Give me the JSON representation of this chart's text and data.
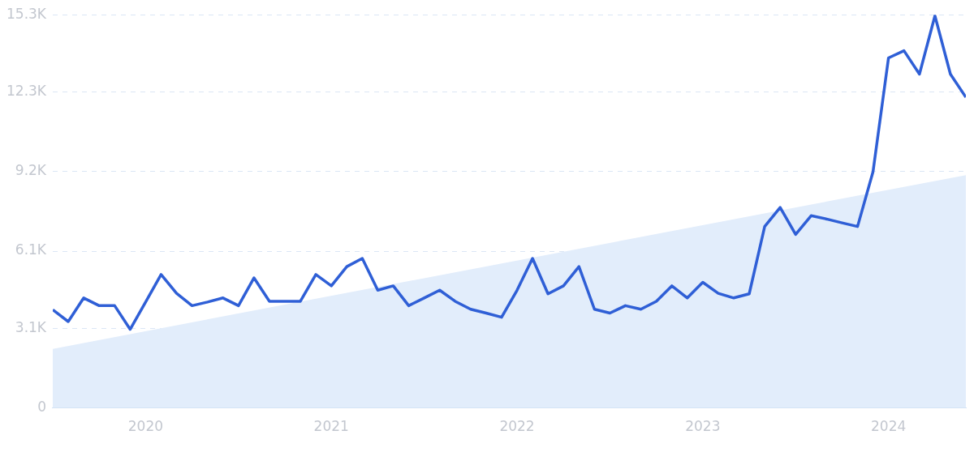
{
  "chart_data": {
    "type": "line",
    "x": [
      "2019-07",
      "2019-08",
      "2019-09",
      "2019-10",
      "2019-11",
      "2019-12",
      "2020-01",
      "2020-02",
      "2020-03",
      "2020-04",
      "2020-05",
      "2020-06",
      "2020-07",
      "2020-08",
      "2020-09",
      "2020-10",
      "2020-11",
      "2020-12",
      "2021-01",
      "2021-02",
      "2021-03",
      "2021-04",
      "2021-05",
      "2021-06",
      "2021-07",
      "2021-08",
      "2021-09",
      "2021-10",
      "2021-11",
      "2021-12",
      "2022-01",
      "2022-02",
      "2022-03",
      "2022-04",
      "2022-05",
      "2022-06",
      "2022-07",
      "2022-08",
      "2022-09",
      "2022-10",
      "2022-11",
      "2022-12",
      "2023-01",
      "2023-02",
      "2023-03",
      "2023-04",
      "2023-05",
      "2023-06",
      "2023-07",
      "2023-08",
      "2023-09",
      "2023-10",
      "2023-11",
      "2023-12",
      "2024-01",
      "2024-02",
      "2024-03",
      "2024-04",
      "2024-05",
      "2024-06"
    ],
    "series": [
      {
        "type": "area",
        "color": "#e2edfb",
        "x": [
          "2019-07",
          "2024-06"
        ],
        "values": [
          2300,
          9060
        ]
      },
      {
        "type": "line",
        "color": "#2f5fd6",
        "values": [
          3820,
          3360,
          4280,
          3980,
          3980,
          3060,
          4120,
          5190,
          4460,
          3980,
          4120,
          4280,
          3980,
          5060,
          4150,
          4150,
          4150,
          5190,
          4750,
          5500,
          5820,
          4580,
          4750,
          3980,
          4280,
          4580,
          4150,
          3840,
          3690,
          3530,
          4580,
          5820,
          4440,
          4750,
          5500,
          3840,
          3690,
          3980,
          3840,
          4150,
          4750,
          4280,
          4890,
          4460,
          4280,
          4440,
          7060,
          7800,
          6750,
          7480,
          7350,
          7200,
          7060,
          9190,
          13620,
          13900,
          12990,
          15260,
          12990,
          12090
        ]
      }
    ],
    "xlim": [
      "2019-07",
      "2024-06"
    ],
    "xticks": [
      "2020",
      "2021",
      "2022",
      "2023",
      "2024"
    ],
    "ylim": [
      0,
      15300
    ],
    "yticks": [
      0,
      {
        "value": 3100,
        "label": "3.1K"
      },
      {
        "value": 6100,
        "label": "6.1K"
      },
      {
        "value": 9200,
        "label": "9.2K"
      },
      {
        "value": 12300,
        "label": "12.3K"
      },
      {
        "value": 15300,
        "label": "15.3K"
      }
    ],
    "grid": "y",
    "marker": "none",
    "line_style": "solid",
    "legend": false
  }
}
